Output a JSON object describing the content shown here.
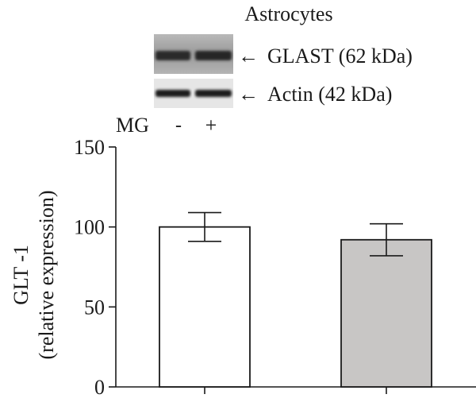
{
  "blot": {
    "title": "Astrocytes",
    "bands": [
      {
        "label": "GLAST (62 kDa)",
        "arrow": "←"
      },
      {
        "label": "Actin (42 kDa)",
        "arrow": "←"
      }
    ],
    "lane_label": "MG",
    "lanes": [
      "-",
      "+"
    ]
  },
  "chart_data": {
    "type": "bar",
    "ylabel_line1": "GLT -1",
    "ylabel_line2": "(relative expression)",
    "ylim": [
      0,
      150
    ],
    "yticks": [
      0,
      50,
      100,
      150
    ],
    "categories": [
      "-",
      "+"
    ],
    "values": [
      100,
      92
    ],
    "errors": [
      9,
      10
    ],
    "bar_colors": [
      "#ffffff",
      "#c8c6c5"
    ],
    "grid": false
  }
}
